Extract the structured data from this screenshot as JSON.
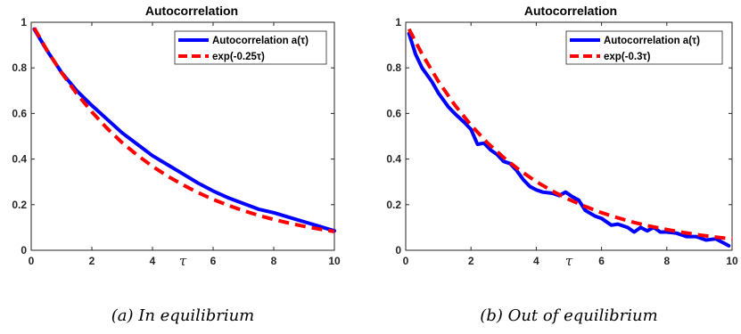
{
  "chart_data": [
    {
      "type": "line",
      "title": "Autocorrelation",
      "xlabel": "τ",
      "ylabel": "",
      "xlim": [
        0,
        10
      ],
      "ylim": [
        0,
        1
      ],
      "xticks": [
        "0",
        "2",
        "4",
        "6",
        "8",
        "10"
      ],
      "yticks": [
        "0",
        "0.2",
        "0.4",
        "0.6",
        "0.8",
        "1"
      ],
      "grid": false,
      "legend_position": "top-right",
      "caption": "(a) In equilibrium",
      "series": [
        {
          "name": "Autocorrelation a(τ)",
          "color": "#0000ff",
          "style": "solid",
          "x": [
            0.1,
            0.5,
            1.0,
            1.5,
            2.0,
            2.5,
            3.0,
            3.5,
            4.0,
            4.5,
            5.0,
            5.5,
            6.0,
            6.5,
            7.0,
            7.5,
            8.0,
            8.5,
            9.0,
            9.5,
            10.0
          ],
          "y": [
            0.97,
            0.88,
            0.78,
            0.7,
            0.635,
            0.575,
            0.515,
            0.465,
            0.415,
            0.375,
            0.335,
            0.295,
            0.26,
            0.23,
            0.205,
            0.18,
            0.165,
            0.145,
            0.125,
            0.105,
            0.085
          ]
        },
        {
          "name": "exp(-0.25τ)",
          "color": "#ff0000",
          "style": "dashed",
          "x": [
            0.1,
            0.5,
            1.0,
            1.5,
            2.0,
            2.5,
            3.0,
            3.5,
            4.0,
            4.5,
            5.0,
            5.5,
            6.0,
            6.5,
            7.0,
            7.5,
            8.0,
            8.5,
            9.0,
            9.5,
            10.0
          ],
          "y": [
            0.975,
            0.882,
            0.779,
            0.687,
            0.607,
            0.535,
            0.472,
            0.417,
            0.368,
            0.325,
            0.287,
            0.253,
            0.223,
            0.197,
            0.174,
            0.153,
            0.135,
            0.119,
            0.105,
            0.093,
            0.082
          ]
        }
      ]
    },
    {
      "type": "line",
      "title": "Autocorrelation",
      "xlabel": "τ",
      "ylabel": "",
      "xlim": [
        0,
        10
      ],
      "ylim": [
        0,
        1
      ],
      "xticks": [
        "0",
        "2",
        "4",
        "6",
        "8",
        "10"
      ],
      "yticks": [
        "0",
        "0.2",
        "0.4",
        "0.6",
        "0.8",
        "1"
      ],
      "grid": false,
      "legend_position": "top-right",
      "caption": "(b) Out of equilibrium",
      "series": [
        {
          "name": "Autocorrelation a(τ)",
          "color": "#0000ff",
          "style": "solid",
          "x": [
            0.1,
            0.3,
            0.5,
            0.8,
            1.0,
            1.3,
            1.5,
            1.8,
            2.0,
            2.2,
            2.4,
            2.6,
            2.8,
            3.0,
            3.2,
            3.4,
            3.6,
            3.8,
            4.0,
            4.2,
            4.5,
            4.7,
            4.9,
            5.1,
            5.3,
            5.5,
            5.8,
            6.0,
            6.3,
            6.5,
            6.8,
            7.0,
            7.2,
            7.4,
            7.6,
            7.8,
            8.0,
            8.3,
            8.6,
            8.9,
            9.2,
            9.5,
            9.7,
            9.9
          ],
          "y": [
            0.95,
            0.86,
            0.8,
            0.74,
            0.69,
            0.63,
            0.6,
            0.56,
            0.53,
            0.465,
            0.47,
            0.44,
            0.42,
            0.39,
            0.38,
            0.35,
            0.31,
            0.28,
            0.265,
            0.255,
            0.25,
            0.24,
            0.255,
            0.235,
            0.22,
            0.175,
            0.15,
            0.14,
            0.11,
            0.115,
            0.1,
            0.08,
            0.1,
            0.085,
            0.1,
            0.08,
            0.08,
            0.075,
            0.06,
            0.06,
            0.045,
            0.05,
            0.035,
            0.02
          ]
        },
        {
          "name": "exp(-0.3τ)",
          "color": "#ff0000",
          "style": "dashed",
          "x": [
            0.1,
            0.5,
            1.0,
            1.5,
            2.0,
            2.5,
            3.0,
            3.5,
            4.0,
            4.5,
            5.0,
            5.5,
            6.0,
            6.5,
            7.0,
            7.5,
            8.0,
            8.5,
            9.0,
            9.5,
            10.0
          ],
          "y": [
            0.97,
            0.861,
            0.741,
            0.638,
            0.549,
            0.472,
            0.407,
            0.35,
            0.301,
            0.259,
            0.223,
            0.192,
            0.165,
            0.142,
            0.122,
            0.105,
            0.091,
            0.078,
            0.067,
            0.058,
            0.05
          ]
        }
      ]
    }
  ]
}
